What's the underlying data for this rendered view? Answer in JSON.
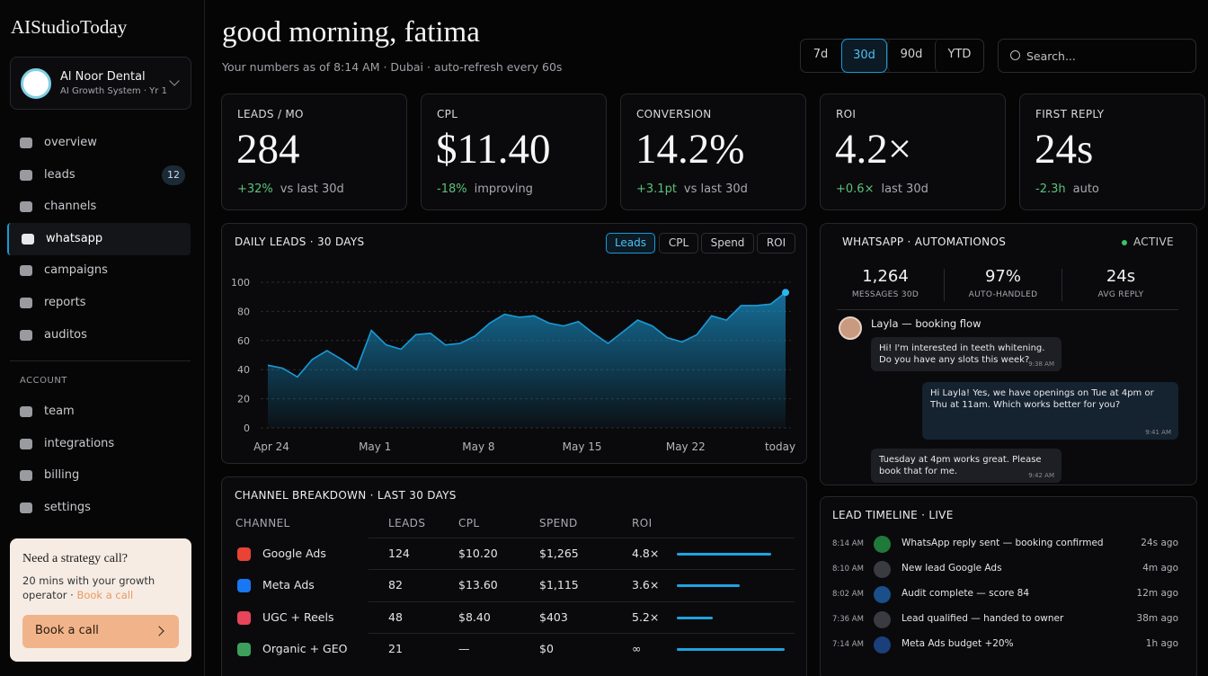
{
  "brand": "AIStudioToday",
  "account": {
    "name": "Al Noor Dental",
    "plan": "AI Growth System · Yr 1"
  },
  "nav": [
    "overview",
    "leads",
    "channels",
    "whatsapp",
    "campaigns",
    "reports",
    "auditos"
  ],
  "leads_badge": "12",
  "account_section": {
    "heading": "ACCOUNT",
    "items": [
      "team",
      "integrations",
      "billing",
      "settings"
    ]
  },
  "promo": {
    "title": "Need a strategy call?",
    "text": "20 mins with your growth operator · ",
    "link": "Book a call",
    "button": "Book a call"
  },
  "header": {
    "greeting": "good morning, fatima",
    "subtitle": "Your numbers as of 8:14 AM · Dubai · auto-refresh every 60s"
  },
  "range_tabs": [
    "7d",
    "30d",
    "90d",
    "YTD"
  ],
  "search_placeholder": "Search...",
  "kpis": [
    {
      "label": "LEADS / MO",
      "value": "284",
      "delta": "+32%",
      "note": "vs last 30d"
    },
    {
      "label": "CPL",
      "value": "$11.40",
      "delta": "-18%",
      "note": "improving"
    },
    {
      "label": "CONVERSION",
      "value": "14.2%",
      "delta": "+3.1pt",
      "note": "vs last 30d"
    },
    {
      "label": "ROI",
      "value": "4.2×",
      "delta": "+0.6×",
      "note": "last 30d"
    },
    {
      "label": "FIRST REPLY",
      "value": "24s",
      "delta": "-2.3h",
      "note": "auto"
    }
  ],
  "chart_data": {
    "type": "area",
    "title": "DAILY LEADS · 30 DAYS",
    "tabs": [
      "Leads",
      "CPL",
      "Spend",
      "ROI"
    ],
    "categories": [
      "Apr 24",
      null,
      null,
      null,
      null,
      null,
      null,
      "May 1",
      null,
      null,
      null,
      null,
      null,
      null,
      "May 8",
      null,
      null,
      null,
      null,
      null,
      null,
      "May 15",
      null,
      null,
      null,
      null,
      null,
      null,
      "May 22",
      null,
      null,
      null,
      null,
      null,
      null,
      "today"
    ],
    "values": [
      43,
      41,
      35,
      47,
      53,
      47,
      40,
      67,
      57,
      54,
      64,
      65,
      57,
      58,
      63,
      72,
      78,
      76,
      77,
      72,
      70,
      73,
      65,
      58,
      66,
      74,
      70,
      62,
      59,
      64,
      77,
      74,
      84,
      84,
      85,
      93
    ],
    "ylim": [
      0,
      100
    ],
    "yticks": [
      0,
      20,
      40,
      60,
      80,
      100
    ],
    "color": "#1a9ad6",
    "grid": true
  },
  "channels": {
    "title": "CHANNEL BREAKDOWN · LAST 30 DAYS",
    "columns": [
      "CHANNEL",
      "LEADS",
      "CPL",
      "SPEND",
      "ROI"
    ],
    "rows": [
      [
        "Google Ads",
        "124",
        "$10.20",
        "$1,265",
        "4.8×"
      ],
      [
        "Meta Ads",
        "82",
        "$13.60",
        "$1,115",
        "3.6×"
      ],
      [
        "UGC + Reels",
        "48",
        "$8.40",
        "$403",
        "5.2×"
      ],
      [
        "Organic + GEO",
        "21",
        "—",
        "$0",
        "∞"
      ]
    ]
  },
  "whatsapp": {
    "title": "WHATSAPP · AUTOMATIONOS",
    "status": "ACTIVE",
    "stats": [
      {
        "value": "1,264",
        "label": "MESSAGES 30D"
      },
      {
        "value": "97%",
        "label": "AUTO-HANDLED"
      },
      {
        "value": "24s",
        "label": "AVG REPLY"
      }
    ],
    "contact": "Layla — booking flow",
    "messages": [
      {
        "text": "Hi! I'm interested in teeth whitening. Do you have any slots this week?",
        "time": "9:38 AM"
      },
      {
        "text": "Hi Layla! Yes, we have openings on Tue at 4pm or Thu at 11am. Which works better for you?",
        "time": "9:41 AM"
      },
      {
        "text": "Tuesday at 4pm works great. Please book that for me.",
        "time": "9:42 AM"
      }
    ]
  },
  "timeline": {
    "title": "LEAD TIMELINE · LIVE",
    "items": [
      {
        "time": "8:14 AM",
        "text": "WhatsApp reply sent — booking confirmed",
        "ago": "24s ago"
      },
      {
        "time": "8:10 AM",
        "text": "New lead Google Ads",
        "ago": "4m ago"
      },
      {
        "time": "8:02 AM",
        "text": "Audit complete — score 84",
        "ago": "12m ago"
      },
      {
        "time": "7:36 AM",
        "text": "Lead qualified — handed to owner",
        "ago": "38m ago"
      },
      {
        "time": "7:14 AM",
        "text": "Meta Ads budget +20%",
        "ago": "1h ago"
      }
    ]
  }
}
